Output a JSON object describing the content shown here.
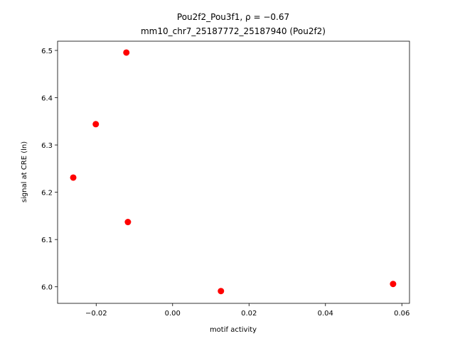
{
  "chart_data": {
    "type": "scatter",
    "title": "Pou2f2_Pou3f1, ρ = −0.67",
    "subtitle": "mm10_chr7_25187772_25187940 (Pou2f2)",
    "x_label": "motif activity",
    "y_label": "signal at CRE (ln)",
    "color": "#ff0000",
    "x": [
      -0.0121,
      -0.0201,
      -0.026,
      -0.0117,
      0.01265,
      0.0577
    ],
    "values": [
      6.4955,
      6.344,
      6.231,
      6.137,
      5.991,
      6.006
    ],
    "xlim": [
      -0.0301,
      0.062
    ],
    "ylim": [
      5.965,
      6.5195
    ],
    "xticks": [
      {
        "value": -0.02,
        "label": "−0.02"
      },
      {
        "value": 0,
        "label": "0.00"
      },
      {
        "value": 0.02,
        "label": "0.02"
      },
      {
        "value": 0.04,
        "label": "0.04"
      },
      {
        "value": 0.06,
        "label": "0.06"
      }
    ],
    "yticks": [
      {
        "value": 6.0,
        "label": "6.0"
      },
      {
        "value": 6.1,
        "label": "6.1"
      },
      {
        "value": 6.2,
        "label": "6.2"
      },
      {
        "value": 6.3,
        "label": "6.3"
      },
      {
        "value": 6.4,
        "label": "6.4"
      },
      {
        "value": 6.5,
        "label": "6.5"
      }
    ]
  }
}
